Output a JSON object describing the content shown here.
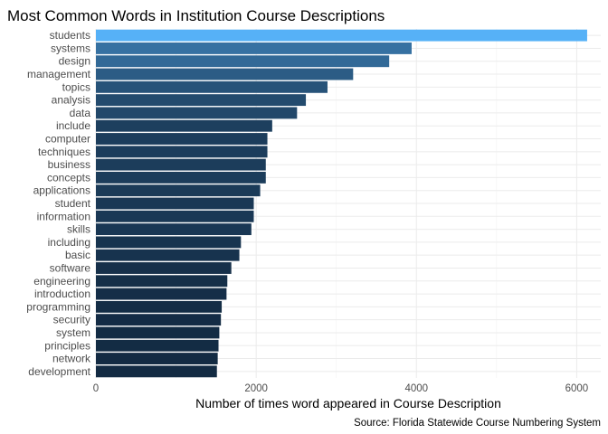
{
  "chart_data": {
    "type": "bar",
    "orientation": "horizontal",
    "title": "Most Common Words in Institution Course Descriptions",
    "xlabel": "Number of times word appeared in Course Description",
    "ylabel": "",
    "caption": "Source: Florida Statewide Course Numbering System",
    "xlim": [
      0,
      6300
    ],
    "xticks": [
      0,
      2000,
      4000,
      6000
    ],
    "grid": true,
    "legend": "none",
    "categories": [
      "students",
      "systems",
      "design",
      "management",
      "topics",
      "analysis",
      "data",
      "include",
      "computer",
      "techniques",
      "business",
      "concepts",
      "applications",
      "student",
      "information",
      "skills",
      "including",
      "basic",
      "software",
      "engineering",
      "introduction",
      "programming",
      "security",
      "system",
      "principles",
      "network",
      "development"
    ],
    "values": [
      6130,
      3940,
      3660,
      3210,
      2890,
      2620,
      2510,
      2200,
      2140,
      2140,
      2120,
      2120,
      2050,
      1970,
      1970,
      1940,
      1810,
      1790,
      1690,
      1640,
      1630,
      1570,
      1560,
      1540,
      1530,
      1520,
      1510
    ],
    "colors": {
      "low": "#132b43",
      "high": "#56b1f7"
    }
  }
}
